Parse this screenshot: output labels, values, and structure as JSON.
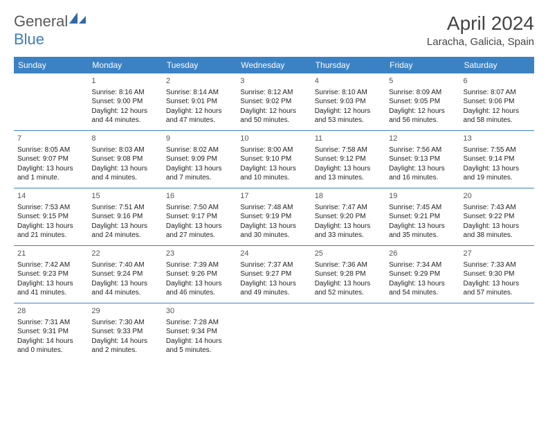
{
  "logo": {
    "text_gray": "General",
    "text_blue": "Blue"
  },
  "header": {
    "title": "April 2024",
    "location": "Laracha, Galicia, Spain"
  },
  "colors": {
    "header_bg": "#3b82c4",
    "header_text": "#ffffff",
    "rule": "#3b82c4"
  },
  "weekdays": [
    "Sunday",
    "Monday",
    "Tuesday",
    "Wednesday",
    "Thursday",
    "Friday",
    "Saturday"
  ],
  "weeks": [
    [
      {
        "n": "",
        "sr": "",
        "ss": "",
        "dl": ""
      },
      {
        "n": "1",
        "sr": "Sunrise: 8:16 AM",
        "ss": "Sunset: 9:00 PM",
        "dl": "Daylight: 12 hours and 44 minutes."
      },
      {
        "n": "2",
        "sr": "Sunrise: 8:14 AM",
        "ss": "Sunset: 9:01 PM",
        "dl": "Daylight: 12 hours and 47 minutes."
      },
      {
        "n": "3",
        "sr": "Sunrise: 8:12 AM",
        "ss": "Sunset: 9:02 PM",
        "dl": "Daylight: 12 hours and 50 minutes."
      },
      {
        "n": "4",
        "sr": "Sunrise: 8:10 AM",
        "ss": "Sunset: 9:03 PM",
        "dl": "Daylight: 12 hours and 53 minutes."
      },
      {
        "n": "5",
        "sr": "Sunrise: 8:09 AM",
        "ss": "Sunset: 9:05 PM",
        "dl": "Daylight: 12 hours and 56 minutes."
      },
      {
        "n": "6",
        "sr": "Sunrise: 8:07 AM",
        "ss": "Sunset: 9:06 PM",
        "dl": "Daylight: 12 hours and 58 minutes."
      }
    ],
    [
      {
        "n": "7",
        "sr": "Sunrise: 8:05 AM",
        "ss": "Sunset: 9:07 PM",
        "dl": "Daylight: 13 hours and 1 minute."
      },
      {
        "n": "8",
        "sr": "Sunrise: 8:03 AM",
        "ss": "Sunset: 9:08 PM",
        "dl": "Daylight: 13 hours and 4 minutes."
      },
      {
        "n": "9",
        "sr": "Sunrise: 8:02 AM",
        "ss": "Sunset: 9:09 PM",
        "dl": "Daylight: 13 hours and 7 minutes."
      },
      {
        "n": "10",
        "sr": "Sunrise: 8:00 AM",
        "ss": "Sunset: 9:10 PM",
        "dl": "Daylight: 13 hours and 10 minutes."
      },
      {
        "n": "11",
        "sr": "Sunrise: 7:58 AM",
        "ss": "Sunset: 9:12 PM",
        "dl": "Daylight: 13 hours and 13 minutes."
      },
      {
        "n": "12",
        "sr": "Sunrise: 7:56 AM",
        "ss": "Sunset: 9:13 PM",
        "dl": "Daylight: 13 hours and 16 minutes."
      },
      {
        "n": "13",
        "sr": "Sunrise: 7:55 AM",
        "ss": "Sunset: 9:14 PM",
        "dl": "Daylight: 13 hours and 19 minutes."
      }
    ],
    [
      {
        "n": "14",
        "sr": "Sunrise: 7:53 AM",
        "ss": "Sunset: 9:15 PM",
        "dl": "Daylight: 13 hours and 21 minutes."
      },
      {
        "n": "15",
        "sr": "Sunrise: 7:51 AM",
        "ss": "Sunset: 9:16 PM",
        "dl": "Daylight: 13 hours and 24 minutes."
      },
      {
        "n": "16",
        "sr": "Sunrise: 7:50 AM",
        "ss": "Sunset: 9:17 PM",
        "dl": "Daylight: 13 hours and 27 minutes."
      },
      {
        "n": "17",
        "sr": "Sunrise: 7:48 AM",
        "ss": "Sunset: 9:19 PM",
        "dl": "Daylight: 13 hours and 30 minutes."
      },
      {
        "n": "18",
        "sr": "Sunrise: 7:47 AM",
        "ss": "Sunset: 9:20 PM",
        "dl": "Daylight: 13 hours and 33 minutes."
      },
      {
        "n": "19",
        "sr": "Sunrise: 7:45 AM",
        "ss": "Sunset: 9:21 PM",
        "dl": "Daylight: 13 hours and 35 minutes."
      },
      {
        "n": "20",
        "sr": "Sunrise: 7:43 AM",
        "ss": "Sunset: 9:22 PM",
        "dl": "Daylight: 13 hours and 38 minutes."
      }
    ],
    [
      {
        "n": "21",
        "sr": "Sunrise: 7:42 AM",
        "ss": "Sunset: 9:23 PM",
        "dl": "Daylight: 13 hours and 41 minutes."
      },
      {
        "n": "22",
        "sr": "Sunrise: 7:40 AM",
        "ss": "Sunset: 9:24 PM",
        "dl": "Daylight: 13 hours and 44 minutes."
      },
      {
        "n": "23",
        "sr": "Sunrise: 7:39 AM",
        "ss": "Sunset: 9:26 PM",
        "dl": "Daylight: 13 hours and 46 minutes."
      },
      {
        "n": "24",
        "sr": "Sunrise: 7:37 AM",
        "ss": "Sunset: 9:27 PM",
        "dl": "Daylight: 13 hours and 49 minutes."
      },
      {
        "n": "25",
        "sr": "Sunrise: 7:36 AM",
        "ss": "Sunset: 9:28 PM",
        "dl": "Daylight: 13 hours and 52 minutes."
      },
      {
        "n": "26",
        "sr": "Sunrise: 7:34 AM",
        "ss": "Sunset: 9:29 PM",
        "dl": "Daylight: 13 hours and 54 minutes."
      },
      {
        "n": "27",
        "sr": "Sunrise: 7:33 AM",
        "ss": "Sunset: 9:30 PM",
        "dl": "Daylight: 13 hours and 57 minutes."
      }
    ],
    [
      {
        "n": "28",
        "sr": "Sunrise: 7:31 AM",
        "ss": "Sunset: 9:31 PM",
        "dl": "Daylight: 14 hours and 0 minutes."
      },
      {
        "n": "29",
        "sr": "Sunrise: 7:30 AM",
        "ss": "Sunset: 9:33 PM",
        "dl": "Daylight: 14 hours and 2 minutes."
      },
      {
        "n": "30",
        "sr": "Sunrise: 7:28 AM",
        "ss": "Sunset: 9:34 PM",
        "dl": "Daylight: 14 hours and 5 minutes."
      },
      {
        "n": "",
        "sr": "",
        "ss": "",
        "dl": ""
      },
      {
        "n": "",
        "sr": "",
        "ss": "",
        "dl": ""
      },
      {
        "n": "",
        "sr": "",
        "ss": "",
        "dl": ""
      },
      {
        "n": "",
        "sr": "",
        "ss": "",
        "dl": ""
      }
    ]
  ]
}
